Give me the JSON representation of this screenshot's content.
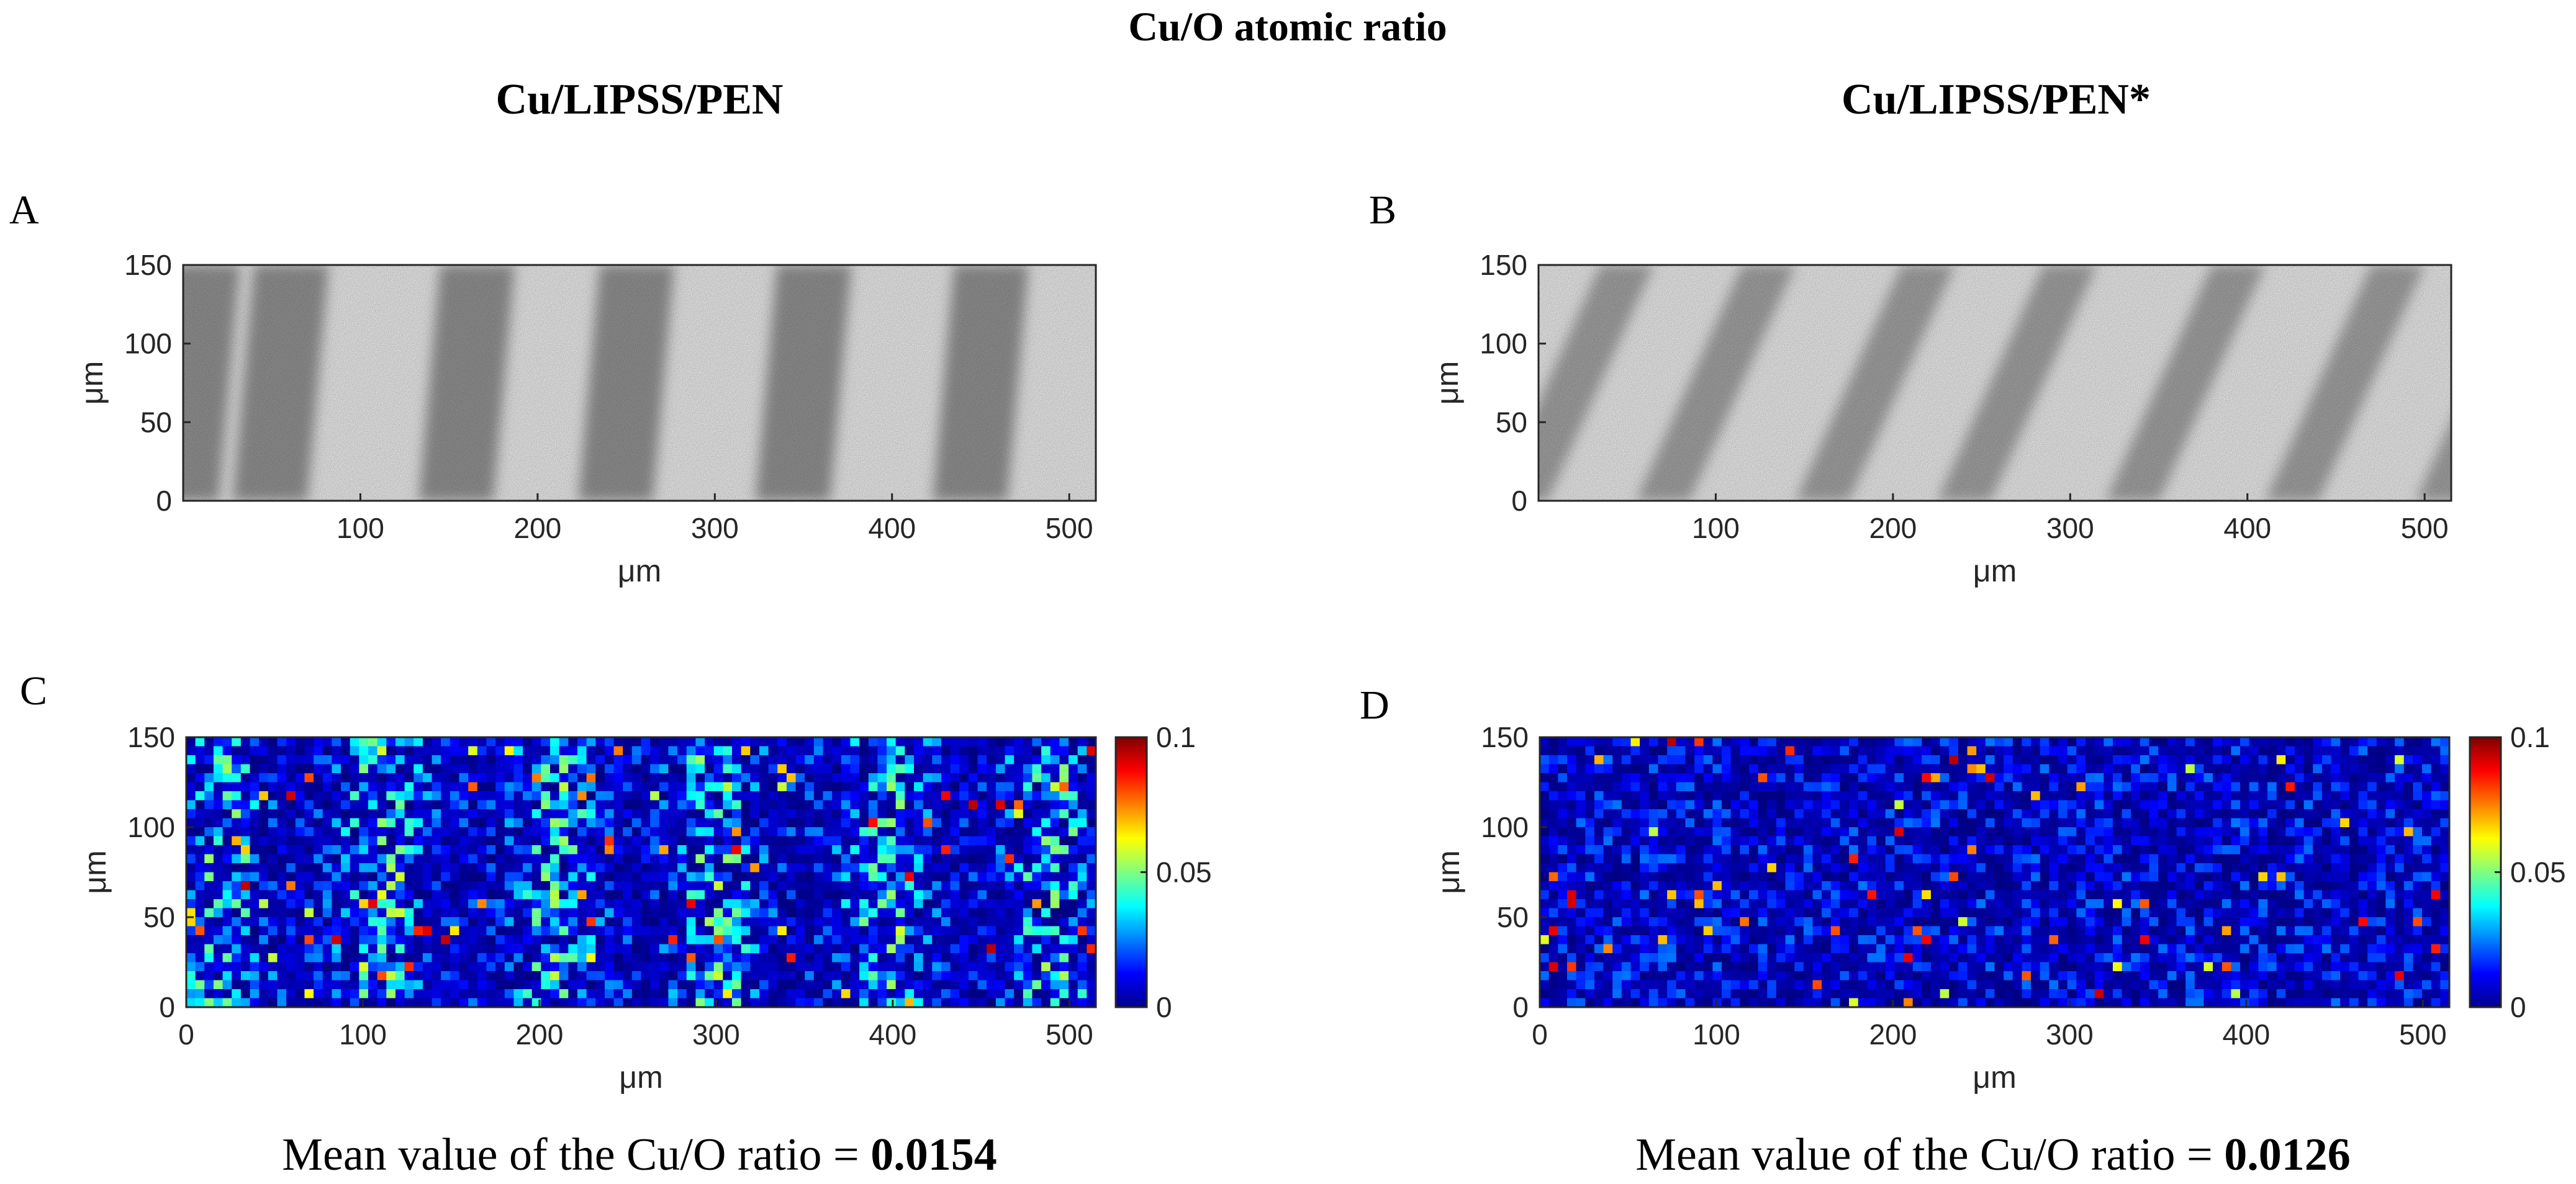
{
  "figure": {
    "title": "Cu/O atomic ratio",
    "column_titles": [
      "Cu/LIPSS/PEN",
      "Cu/LIPSS/PEN*"
    ],
    "mean_prefix": "Mean value of the Cu/O ratio = ",
    "mean_values": [
      "0.0154",
      "0.0126"
    ]
  },
  "chart_data": [
    {
      "panel": "A",
      "type": "heatmap",
      "colormap": "grayscale",
      "title": "",
      "xlabel": "μm",
      "ylabel": "μm",
      "xlim": [
        0,
        515
      ],
      "ylim": [
        0,
        150
      ],
      "x_ticks": [
        100,
        200,
        300,
        400,
        500
      ],
      "y_ticks": [
        0,
        50,
        100,
        150
      ],
      "pattern": {
        "dark_band_centers": [
          5,
          55,
          160,
          250,
          350,
          450
        ],
        "band_width": 42,
        "slant_per_100um": 8,
        "contrast": 0.55
      }
    },
    {
      "panel": "B",
      "type": "heatmap",
      "colormap": "grayscale",
      "title": "",
      "xlabel": "μm",
      "ylabel": "μm",
      "xlim": [
        0,
        515
      ],
      "ylim": [
        0,
        150
      ],
      "x_ticks": [
        100,
        200,
        300,
        400,
        500
      ],
      "y_ticks": [
        0,
        50,
        100,
        150
      ],
      "pattern": {
        "dark_band_centers": [
          20,
          100,
          190,
          270,
          365,
          455,
          540
        ],
        "band_width": 30,
        "slant_per_100um": 40,
        "contrast": 0.45
      }
    },
    {
      "panel": "C",
      "type": "heatmap",
      "colormap": "jet",
      "title": "",
      "xlabel": "μm",
      "ylabel": "μm",
      "xlim": [
        0,
        515
      ],
      "ylim": [
        0,
        150
      ],
      "x_ticks": [
        0,
        100,
        200,
        300,
        400,
        500
      ],
      "y_ticks": [
        0,
        50,
        100,
        150
      ],
      "colorbar": {
        "min": 0,
        "max": 0.1,
        "ticks": [
          0,
          0.05,
          0.1
        ],
        "tick_labels": [
          "0",
          "0.05",
          "0.1"
        ]
      },
      "grid": {
        "cols": 100,
        "rows": 30
      },
      "mean": 0.0154,
      "hot_band_centers_um": [
        20,
        110,
        210,
        300,
        395,
        490
      ]
    },
    {
      "panel": "D",
      "type": "heatmap",
      "colormap": "jet",
      "title": "",
      "xlabel": "μm",
      "ylabel": "μm",
      "xlim": [
        0,
        515
      ],
      "ylim": [
        0,
        150
      ],
      "x_ticks": [
        0,
        100,
        200,
        300,
        400,
        500
      ],
      "y_ticks": [
        0,
        50,
        100,
        150
      ],
      "colorbar": {
        "min": 0,
        "max": 0.1,
        "ticks": [
          0,
          0.05,
          0.1
        ],
        "tick_labels": [
          "0",
          "0.05",
          "0.1"
        ]
      },
      "grid": {
        "cols": 100,
        "rows": 30
      },
      "mean": 0.0126,
      "hot_band_centers_um": []
    }
  ]
}
